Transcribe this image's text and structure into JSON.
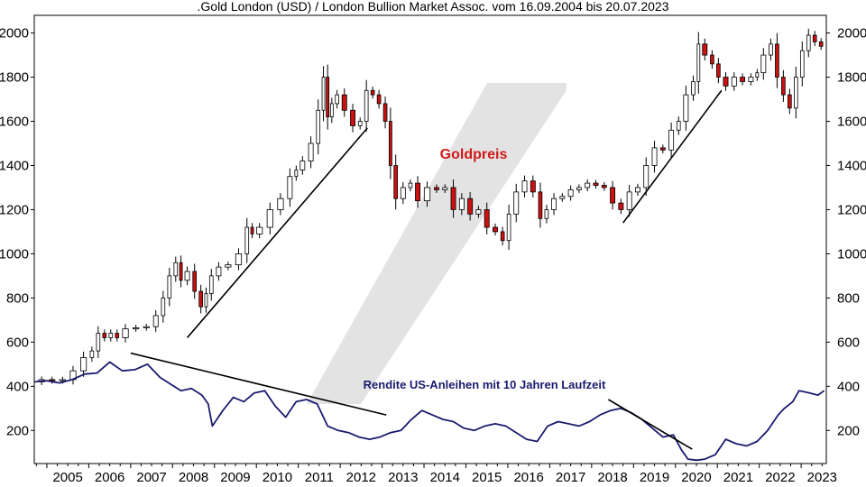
{
  "chart_data": {
    "type": "candlestick+line",
    "title": ".Gold London (USD) / London Bullion Market Assoc. vom 16.09.2004 bis 20.07.2023",
    "ylim": [
      50,
      2080
    ],
    "y_ticks": [
      200,
      400,
      600,
      800,
      1000,
      1200,
      1400,
      1600,
      1800,
      2000
    ],
    "x_ticks": [
      "2005",
      "2006",
      "2007",
      "2008",
      "2009",
      "2010",
      "2011",
      "2012",
      "2013",
      "2014",
      "2015",
      "2016",
      "2017",
      "2018",
      "2019",
      "2020",
      "2021",
      "2022",
      "2023"
    ],
    "x_start": 2004.7,
    "x_end": 2023.6,
    "grid": false,
    "colors": {
      "up": "#ffffff",
      "down": "#cc1111",
      "wick": "#000000",
      "yield_line": "#1a1a6e",
      "gold_label": "#d11a1a",
      "yield_label": "#1a1a6e",
      "watermark": "#e3e3e3"
    },
    "annotations": {
      "gold_label": "Goldpreis",
      "yield_label": "Rendite US-Anleihen mit 10 Jahren Laufzeit"
    },
    "series": [
      {
        "name": "Goldpreis",
        "kind": "monthly-close",
        "x": [
          2004.75,
          2005.0,
          2005.25,
          2005.5,
          2005.75,
          2006.0,
          2006.15,
          2006.3,
          2006.45,
          2006.6,
          2006.75,
          2007.0,
          2007.25,
          2007.5,
          2007.7,
          2007.85,
          2008.0,
          2008.15,
          2008.25,
          2008.45,
          2008.6,
          2008.75,
          2008.85,
          2009.0,
          2009.2,
          2009.45,
          2009.7,
          2009.85,
          2009.95,
          2010.2,
          2010.45,
          2010.7,
          2010.9,
          2011.0,
          2011.2,
          2011.4,
          2011.55,
          2011.65,
          2011.75,
          2011.85,
          2012.0,
          2012.2,
          2012.4,
          2012.55,
          2012.7,
          2012.85,
          2013.0,
          2013.15,
          2013.25,
          2013.4,
          2013.6,
          2013.75,
          2013.95,
          2014.2,
          2014.4,
          2014.6,
          2014.8,
          2015.0,
          2015.2,
          2015.4,
          2015.6,
          2015.8,
          2015.95,
          2016.1,
          2016.3,
          2016.5,
          2016.7,
          2016.85,
          2017.0,
          2017.2,
          2017.4,
          2017.6,
          2017.8,
          2018.0,
          2018.2,
          2018.4,
          2018.6,
          2018.8,
          2019.0,
          2019.2,
          2019.4,
          2019.6,
          2019.8,
          2020.0,
          2020.15,
          2020.35,
          2020.5,
          2020.6,
          2020.8,
          2020.95,
          2021.1,
          2021.3,
          2021.5,
          2021.7,
          2021.9,
          2022.0,
          2022.2,
          2022.35,
          2022.5,
          2022.65,
          2022.8,
          2022.95,
          2023.1,
          2023.25,
          2023.4,
          2023.55
        ],
        "values": [
          420,
          430,
          425,
          430,
          470,
          530,
          560,
          640,
          620,
          640,
          620,
          660,
          665,
          670,
          720,
          800,
          900,
          960,
          880,
          920,
          830,
          760,
          820,
          900,
          940,
          950,
          1000,
          1120,
          1090,
          1120,
          1200,
          1250,
          1350,
          1380,
          1420,
          1500,
          1650,
          1800,
          1620,
          1680,
          1720,
          1650,
          1580,
          1600,
          1740,
          1720,
          1680,
          1600,
          1400,
          1250,
          1300,
          1320,
          1240,
          1300,
          1290,
          1300,
          1200,
          1250,
          1180,
          1200,
          1120,
          1100,
          1060,
          1180,
          1280,
          1330,
          1280,
          1160,
          1200,
          1250,
          1260,
          1290,
          1300,
          1320,
          1310,
          1300,
          1230,
          1200,
          1280,
          1300,
          1400,
          1480,
          1470,
          1560,
          1600,
          1720,
          1780,
          1950,
          1900,
          1860,
          1800,
          1760,
          1800,
          1780,
          1800,
          1820,
          1900,
          1950,
          1800,
          1720,
          1660,
          1800,
          1920,
          1990,
          1960,
          1940
        ]
      },
      {
        "name": "Rendite US-Anleihen mit 10 Jahren Laufzeit",
        "kind": "line",
        "x": [
          2004.7,
          2005.0,
          2005.3,
          2005.6,
          2005.9,
          2006.2,
          2006.5,
          2006.8,
          2007.1,
          2007.4,
          2007.7,
          2007.95,
          2008.2,
          2008.45,
          2008.7,
          2008.85,
          2008.95,
          2009.2,
          2009.45,
          2009.7,
          2009.95,
          2010.2,
          2010.45,
          2010.7,
          2010.95,
          2011.2,
          2011.45,
          2011.7,
          2011.95,
          2012.2,
          2012.45,
          2012.7,
          2012.95,
          2013.2,
          2013.45,
          2013.7,
          2013.95,
          2014.2,
          2014.45,
          2014.7,
          2014.95,
          2015.2,
          2015.45,
          2015.7,
          2015.95,
          2016.2,
          2016.45,
          2016.7,
          2016.95,
          2017.2,
          2017.45,
          2017.7,
          2017.95,
          2018.2,
          2018.45,
          2018.7,
          2018.95,
          2019.2,
          2019.45,
          2019.7,
          2019.95,
          2020.15,
          2020.3,
          2020.5,
          2020.7,
          2020.95,
          2021.2,
          2021.45,
          2021.7,
          2021.95,
          2022.2,
          2022.45,
          2022.6,
          2022.8,
          2022.95,
          2023.2,
          2023.4,
          2023.55
        ],
        "values": [
          420,
          425,
          415,
          430,
          455,
          460,
          510,
          470,
          475,
          500,
          440,
          410,
          380,
          390,
          360,
          320,
          220,
          290,
          350,
          330,
          370,
          380,
          310,
          260,
          330,
          340,
          320,
          220,
          200,
          190,
          170,
          160,
          170,
          190,
          200,
          250,
          290,
          270,
          250,
          240,
          210,
          200,
          220,
          230,
          220,
          190,
          160,
          150,
          220,
          240,
          230,
          220,
          240,
          270,
          290,
          300,
          280,
          250,
          210,
          170,
          180,
          110,
          70,
          65,
          70,
          90,
          160,
          140,
          130,
          150,
          200,
          270,
          300,
          330,
          380,
          370,
          360,
          380
        ]
      }
    ]
  }
}
